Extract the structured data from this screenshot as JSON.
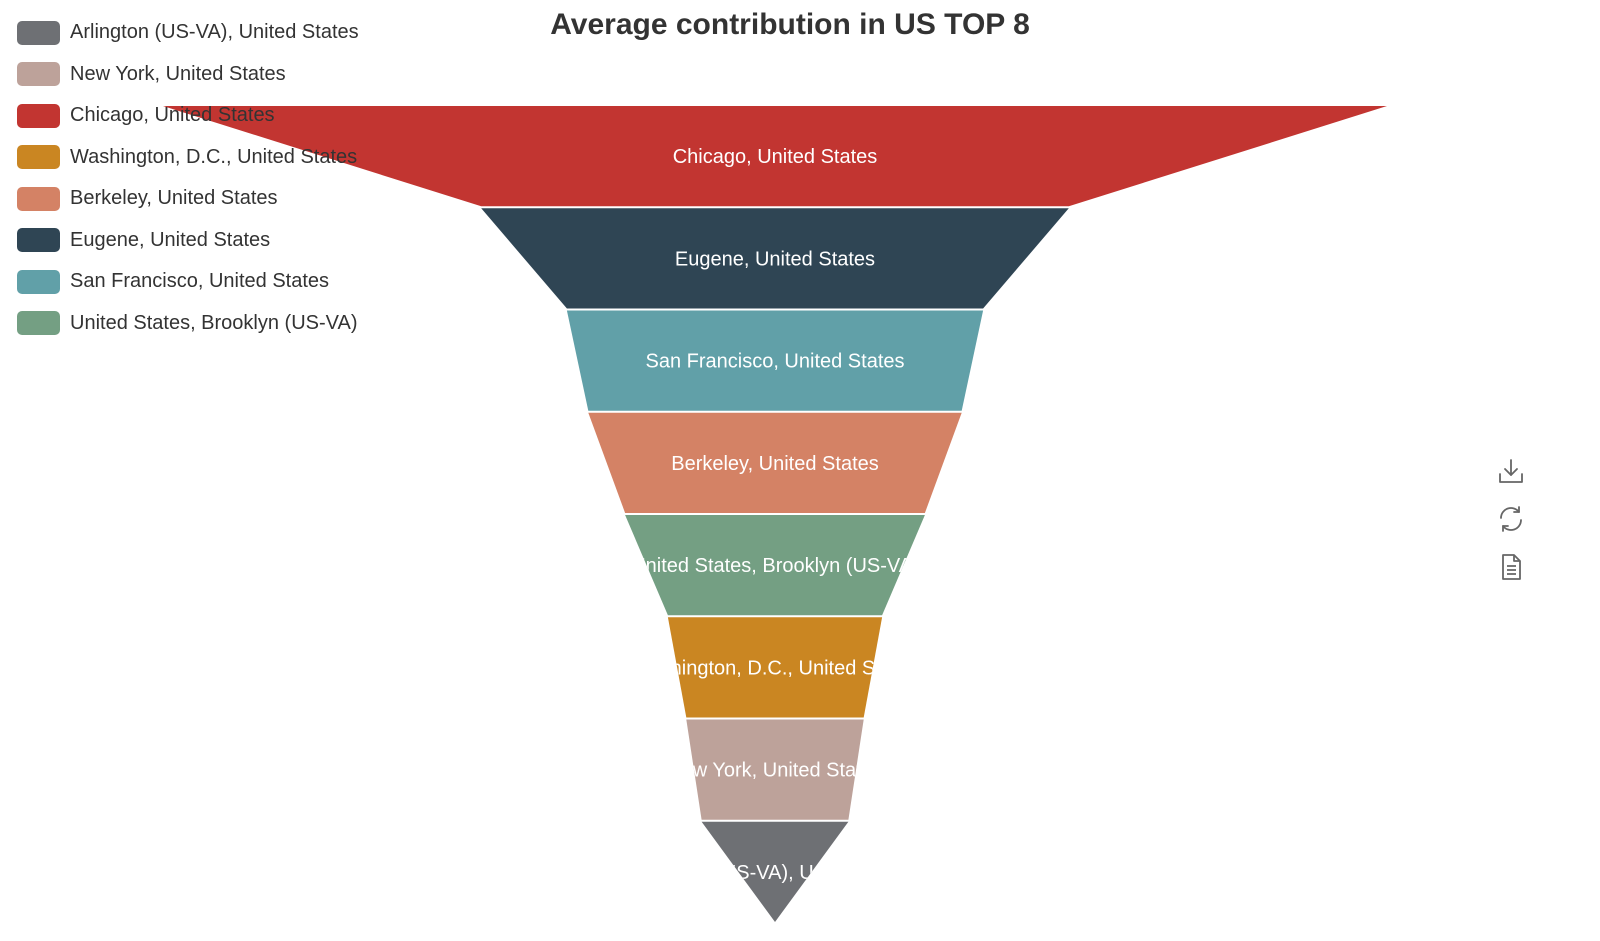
{
  "chart_data": {
    "type": "funnel",
    "title": "Average contribution in US TOP 8",
    "sort": "descending",
    "legend_position": "top-left",
    "legend": [
      {
        "name": "Arlington (US-VA), United States",
        "color": "#6e7074"
      },
      {
        "name": "New York, United States",
        "color": "#bda29a"
      },
      {
        "name": "Chicago, United States",
        "color": "#c23531"
      },
      {
        "name": "Washington, D.C., United States",
        "color": "#ca8622"
      },
      {
        "name": "Berkeley, United States",
        "color": "#d48265"
      },
      {
        "name": "Eugene, United States",
        "color": "#2f4554"
      },
      {
        "name": "San Francisco, United States",
        "color": "#61a0a8"
      },
      {
        "name": "United States, Brooklyn (US-VA)",
        "color": "#749f83"
      }
    ],
    "series": [
      {
        "name": "Chicago, United States",
        "value": 100,
        "color": "#c23531"
      },
      {
        "name": "Eugene, United States",
        "value": 48,
        "color": "#2f4554"
      },
      {
        "name": "San Francisco, United States",
        "value": 34,
        "color": "#61a0a8"
      },
      {
        "name": "Berkeley, United States",
        "value": 30.5,
        "color": "#d48265"
      },
      {
        "name": "United States, Brooklyn (US-VA)",
        "value": 24.5,
        "color": "#749f83"
      },
      {
        "name": "Washington, D.C., United States",
        "value": 17.5,
        "color": "#ca8622"
      },
      {
        "name": "New York, United States",
        "value": 14.5,
        "color": "#bda29a"
      },
      {
        "name": "Arlington (US-VA), United States",
        "value": 12,
        "color": "#6e7074"
      }
    ]
  },
  "toolbox": {
    "items": [
      {
        "name": "download-icon"
      },
      {
        "name": "refresh-icon"
      },
      {
        "name": "data-view-icon"
      }
    ]
  }
}
